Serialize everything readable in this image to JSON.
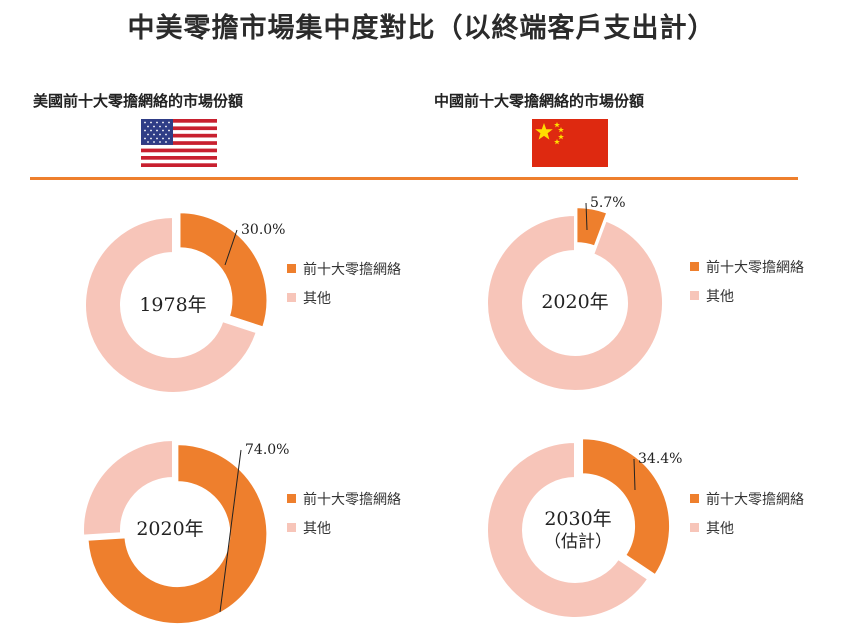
{
  "title": "中美零擔市場集中度對比（以終端客戶支出計）",
  "regions": {
    "us": {
      "heading": "美國前十大零擔網絡的市場份額",
      "flag_icon": "us-flag-icon"
    },
    "cn": {
      "heading": "中國前十大零擔網絡的市場份額",
      "flag_icon": "cn-flag-icon"
    }
  },
  "colors": {
    "top10": "#ee7f2d",
    "others": "#f7c5b9",
    "divider": "#ee7f2d"
  },
  "legend": {
    "top10_label": "前十大零擔網絡",
    "others_label": "其他"
  },
  "chart_data": [
    {
      "type": "pie",
      "region": "us",
      "center_label": [
        "1978年"
      ],
      "categories": [
        "前十大零擔網絡",
        "其他"
      ],
      "values": [
        30.0,
        70.0
      ],
      "data_label": "30.0%"
    },
    {
      "type": "pie",
      "region": "us",
      "center_label": [
        "2020年"
      ],
      "categories": [
        "前十大零擔網絡",
        "其他"
      ],
      "values": [
        74.0,
        26.0
      ],
      "data_label": "74.0%"
    },
    {
      "type": "pie",
      "region": "cn",
      "center_label": [
        "2020年"
      ],
      "categories": [
        "前十大零擔網絡",
        "其他"
      ],
      "values": [
        5.7,
        94.3
      ],
      "data_label": "5.7%"
    },
    {
      "type": "pie",
      "region": "cn",
      "center_label": [
        "2030年",
        "（估計）"
      ],
      "categories": [
        "前十大零擔網絡",
        "其他"
      ],
      "values": [
        34.4,
        65.6
      ],
      "data_label": "34.4%"
    }
  ]
}
